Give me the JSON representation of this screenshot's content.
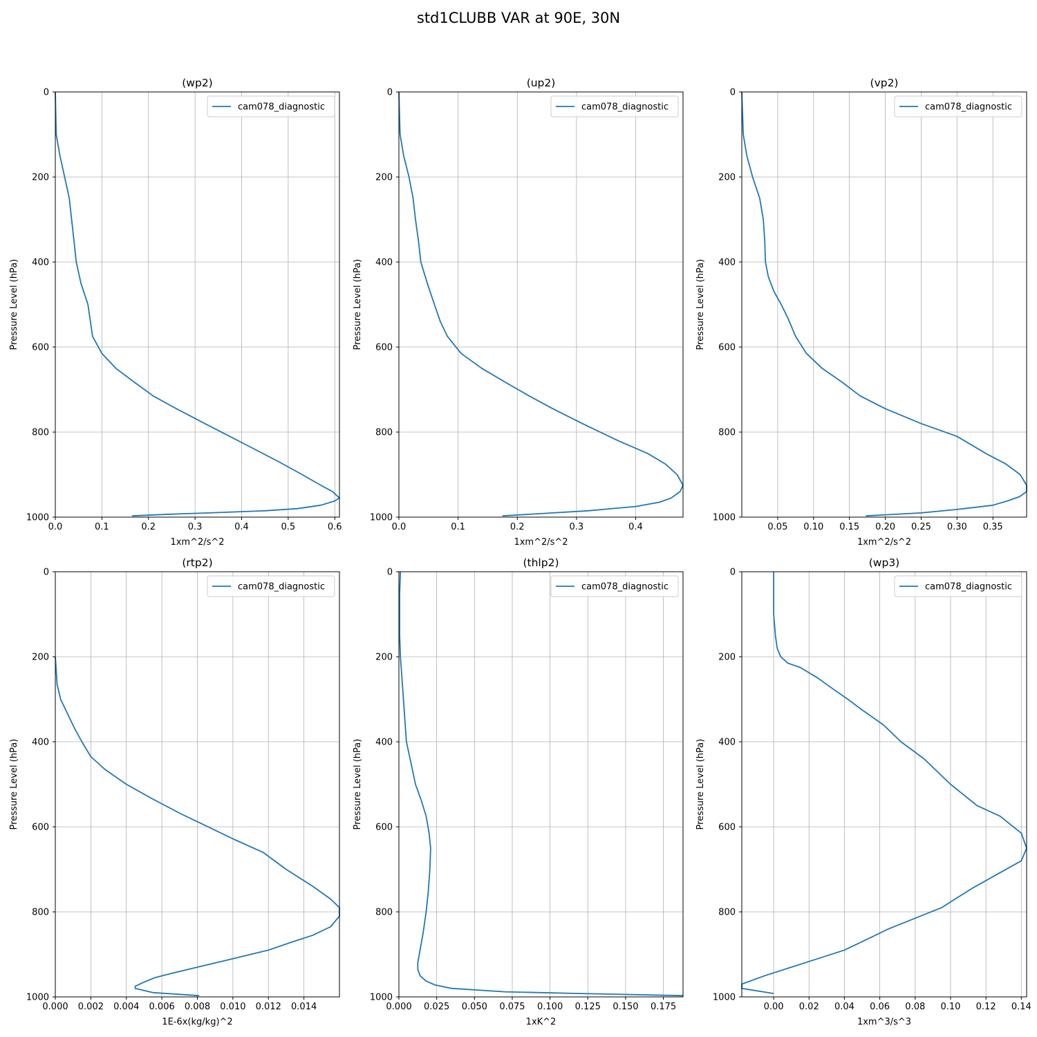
{
  "figure": {
    "title": "std1CLUBB VAR at 90E, 30N"
  },
  "colors": {
    "line": "#1f77b4",
    "grid": "#b0b0b0"
  },
  "chart_data": [
    {
      "type": "line",
      "title": "(wp2)",
      "xlabel": "1xm^2/s^2",
      "ylabel": "Pressure Level (hPa)",
      "xlim": [
        0.0,
        0.61
      ],
      "ylim": [
        1000,
        0
      ],
      "y_inverted": true,
      "xticks": [
        0.0,
        0.1,
        0.2,
        0.3,
        0.4,
        0.5,
        0.6
      ],
      "xtick_labels": [
        "0.0",
        "0.1",
        "0.2",
        "0.3",
        "0.4",
        "0.5",
        "0.6"
      ],
      "yticks": [
        0,
        200,
        400,
        600,
        800,
        1000
      ],
      "ytick_labels": [
        "0",
        "200",
        "400",
        "600",
        "800",
        "1000"
      ],
      "grid": true,
      "legend": "upper right",
      "series": [
        {
          "name": "cam078_diagnostic",
          "x": [
            0.0,
            0.002,
            0.01,
            0.02,
            0.03,
            0.035,
            0.04,
            0.045,
            0.055,
            0.07,
            0.08,
            0.1,
            0.13,
            0.17,
            0.21,
            0.26,
            0.33,
            0.41,
            0.48,
            0.53,
            0.57,
            0.595,
            0.61,
            0.6,
            0.57,
            0.52,
            0.45,
            0.33,
            0.25,
            0.165
          ],
          "y": [
            0,
            100,
            150,
            200,
            250,
            300,
            350,
            400,
            450,
            500,
            575,
            615,
            650,
            683,
            715,
            745,
            785,
            830,
            870,
            900,
            925,
            940,
            955,
            962,
            972,
            980,
            985,
            990,
            993,
            997
          ]
        }
      ]
    },
    {
      "type": "line",
      "title": "(up2)",
      "xlabel": "1xm^2/s^2",
      "ylabel": "Pressure Level (hPa)",
      "xlim": [
        0.0,
        0.48
      ],
      "ylim": [
        1000,
        0
      ],
      "y_inverted": true,
      "xticks": [
        0.0,
        0.1,
        0.2,
        0.3,
        0.4
      ],
      "xtick_labels": [
        "0.0",
        "0.1",
        "0.2",
        "0.3",
        "0.4"
      ],
      "yticks": [
        0,
        200,
        400,
        600,
        800,
        1000
      ],
      "ytick_labels": [
        "0",
        "200",
        "400",
        "600",
        "800",
        "1000"
      ],
      "grid": true,
      "legend": "upper right",
      "series": [
        {
          "name": "cam078_diagnostic",
          "x": [
            0.0,
            0.002,
            0.008,
            0.017,
            0.024,
            0.028,
            0.033,
            0.037,
            0.048,
            0.06,
            0.07,
            0.082,
            0.105,
            0.14,
            0.18,
            0.22,
            0.26,
            0.31,
            0.37,
            0.42,
            0.45,
            0.47,
            0.48,
            0.475,
            0.46,
            0.44,
            0.4,
            0.32,
            0.26,
            0.175
          ],
          "y": [
            0,
            100,
            150,
            200,
            250,
            300,
            350,
            400,
            450,
            500,
            540,
            575,
            615,
            650,
            683,
            715,
            745,
            780,
            820,
            850,
            875,
            900,
            925,
            940,
            955,
            965,
            975,
            985,
            990,
            997
          ]
        }
      ]
    },
    {
      "type": "line",
      "title": "(vp2)",
      "xlabel": "1xm^2/s^2",
      "ylabel": "Pressure Level (hPa)",
      "xlim": [
        0.0,
        0.397
      ],
      "ylim": [
        1000,
        0
      ],
      "y_inverted": true,
      "xticks": [
        0.05,
        0.1,
        0.15,
        0.2,
        0.25,
        0.3,
        0.35
      ],
      "xtick_labels": [
        "0.05",
        "0.10",
        "0.15",
        "0.20",
        "0.25",
        "0.30",
        "0.35"
      ],
      "yticks": [
        0,
        200,
        400,
        600,
        800,
        1000
      ],
      "ytick_labels": [
        "0",
        "200",
        "400",
        "600",
        "800",
        "1000"
      ],
      "grid": true,
      "legend": "upper right",
      "series": [
        {
          "name": "cam078_diagnostic",
          "x": [
            0.0,
            0.002,
            0.007,
            0.015,
            0.025,
            0.03,
            0.032,
            0.033,
            0.037,
            0.045,
            0.055,
            0.065,
            0.075,
            0.09,
            0.112,
            0.14,
            0.165,
            0.2,
            0.25,
            0.3,
            0.34,
            0.368,
            0.388,
            0.397,
            0.397,
            0.387,
            0.37,
            0.35,
            0.3,
            0.25,
            0.173
          ],
          "y": [
            0,
            100,
            150,
            200,
            250,
            300,
            350,
            400,
            435,
            470,
            500,
            535,
            575,
            615,
            650,
            683,
            715,
            745,
            780,
            810,
            850,
            875,
            900,
            925,
            940,
            952,
            962,
            972,
            982,
            990,
            997
          ]
        }
      ]
    },
    {
      "type": "line",
      "title": "(rtp2)",
      "xlabel": "1E-6x(kg/kg)^2",
      "ylabel": "Pressure Level (hPa)",
      "xlim": [
        0.0,
        0.016
      ],
      "ylim": [
        1000,
        0
      ],
      "y_inverted": true,
      "xticks": [
        0.0,
        0.002,
        0.004,
        0.006,
        0.008,
        0.01,
        0.012,
        0.014
      ],
      "xtick_labels": [
        "0.000",
        "0.002",
        "0.004",
        "0.006",
        "0.008",
        "0.010",
        "0.012",
        "0.014"
      ],
      "yticks": [
        0,
        200,
        400,
        600,
        800,
        1000
      ],
      "ytick_labels": [
        "0",
        "200",
        "400",
        "600",
        "800",
        "1000"
      ],
      "grid": true,
      "legend": "upper right",
      "series": [
        {
          "name": "cam078_diagnostic",
          "x": [
            0.0,
            0.0001,
            0.0003,
            0.0007,
            0.0011,
            0.0015,
            0.002,
            0.0028,
            0.004,
            0.0055,
            0.0071,
            0.0081,
            0.0091,
            0.0101,
            0.0117,
            0.013,
            0.0145,
            0.0155,
            0.016,
            0.016,
            0.0155,
            0.0145,
            0.0134,
            0.012,
            0.01,
            0.008,
            0.0065,
            0.0056,
            0.005,
            0.0045,
            0.0045,
            0.0055,
            0.0081
          ],
          "y": [
            200,
            265,
            300,
            335,
            370,
            400,
            435,
            465,
            500,
            535,
            570,
            590,
            610,
            630,
            660,
            700,
            740,
            770,
            790,
            810,
            835,
            855,
            870,
            890,
            910,
            930,
            945,
            955,
            965,
            975,
            980,
            990,
            997
          ]
        }
      ]
    },
    {
      "type": "line",
      "title": "(thlp2)",
      "xlabel": "1xK^2",
      "ylabel": "Pressure Level (hPa)",
      "xlim": [
        0.0,
        0.188
      ],
      "ylim": [
        1000,
        0
      ],
      "y_inverted": true,
      "xticks": [
        0.0,
        0.025,
        0.05,
        0.075,
        0.1,
        0.125,
        0.15,
        0.175
      ],
      "xtick_labels": [
        "0.000",
        "0.025",
        "0.050",
        "0.075",
        "0.100",
        "0.125",
        "0.150",
        "0.175"
      ],
      "yticks": [
        0,
        200,
        400,
        600,
        800,
        1000
      ],
      "ytick_labels": [
        "0",
        "200",
        "400",
        "600",
        "800",
        "1000"
      ],
      "grid": true,
      "legend": "upper right",
      "series": [
        {
          "name": "cam078_diagnostic",
          "x": [
            0.001,
            0.0005,
            0.0005,
            0.001,
            0.002,
            0.003,
            0.004,
            0.005,
            0.008,
            0.011,
            0.015,
            0.018,
            0.02,
            0.021,
            0.0205,
            0.0195,
            0.018,
            0.016,
            0.014,
            0.0125,
            0.0125,
            0.014,
            0.018,
            0.024,
            0.035,
            0.07,
            0.12,
            0.188
          ],
          "y": [
            0,
            50,
            150,
            200,
            250,
            300,
            350,
            400,
            450,
            500,
            540,
            575,
            615,
            650,
            700,
            750,
            800,
            850,
            890,
            920,
            935,
            950,
            963,
            972,
            980,
            988,
            992,
            997
          ]
        }
      ]
    },
    {
      "type": "line",
      "title": "(wp3)",
      "xlabel": "1xm^3/s^3",
      "ylabel": "Pressure Level (hPa)",
      "xlim": [
        -0.018,
        0.143
      ],
      "ylim": [
        1000,
        0
      ],
      "y_inverted": true,
      "xticks": [
        0.0,
        0.02,
        0.04,
        0.06,
        0.08,
        0.1,
        0.12,
        0.14
      ],
      "xtick_labels": [
        "0.00",
        "0.02",
        "0.04",
        "0.06",
        "0.08",
        "0.10",
        "0.12",
        "0.14"
      ],
      "yticks": [
        0,
        200,
        400,
        600,
        800,
        1000
      ],
      "ytick_labels": [
        "0",
        "200",
        "400",
        "600",
        "800",
        "1000"
      ],
      "grid": true,
      "legend": "upper right",
      "series": [
        {
          "name": "cam078_diagnostic",
          "x": [
            0.0,
            0.0,
            0.0,
            0.001,
            0.002,
            0.004,
            0.008,
            0.015,
            0.025,
            0.035,
            0.042,
            0.05,
            0.062,
            0.072,
            0.085,
            0.1,
            0.115,
            0.128,
            0.14,
            0.143,
            0.14,
            0.127,
            0.112,
            0.095,
            0.08,
            0.065,
            0.055,
            0.04,
            0.025,
            0.01,
            -0.005,
            -0.018,
            -0.018,
            0.0
          ],
          "y": [
            0,
            50,
            100,
            150,
            180,
            200,
            215,
            225,
            250,
            280,
            300,
            325,
            360,
            400,
            440,
            500,
            550,
            575,
            615,
            650,
            680,
            710,
            745,
            790,
            815,
            840,
            860,
            890,
            910,
            930,
            950,
            970,
            980,
            992
          ]
        }
      ]
    }
  ]
}
